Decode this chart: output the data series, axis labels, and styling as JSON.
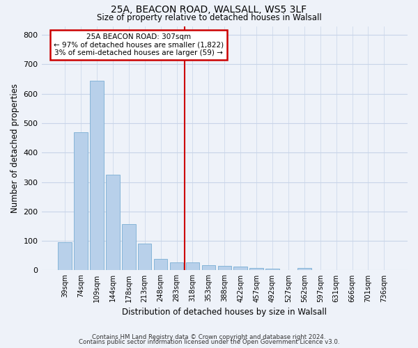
{
  "title1": "25A, BEACON ROAD, WALSALL, WS5 3LF",
  "title2": "Size of property relative to detached houses in Walsall",
  "xlabel": "Distribution of detached houses by size in Walsall",
  "ylabel": "Number of detached properties",
  "categories": [
    "39sqm",
    "74sqm",
    "109sqm",
    "144sqm",
    "178sqm",
    "213sqm",
    "248sqm",
    "283sqm",
    "318sqm",
    "353sqm",
    "388sqm",
    "422sqm",
    "457sqm",
    "492sqm",
    "527sqm",
    "562sqm",
    "597sqm",
    "631sqm",
    "666sqm",
    "701sqm",
    "736sqm"
  ],
  "values": [
    95,
    470,
    645,
    325,
    158,
    90,
    40,
    28,
    27,
    17,
    15,
    13,
    8,
    5,
    0,
    8,
    0,
    0,
    0,
    0,
    0
  ],
  "bar_color": "#b8d0ea",
  "bar_edge_color": "#7aaed4",
  "vline_color": "#cc0000",
  "annotation_title": "25A BEACON ROAD: 307sqm",
  "annotation_line1": "← 97% of detached houses are smaller (1,822)",
  "annotation_line2": "3% of semi-detached houses are larger (59) →",
  "annotation_box_color": "#ffffff",
  "annotation_box_edge_color": "#cc0000",
  "ylim": [
    0,
    830
  ],
  "yticks": [
    0,
    100,
    200,
    300,
    400,
    500,
    600,
    700,
    800
  ],
  "footer1": "Contains HM Land Registry data © Crown copyright and database right 2024.",
  "footer2": "Contains public sector information licensed under the Open Government Licence v3.0.",
  "bg_color": "#eef2f9",
  "grid_color": "#c8d4e8"
}
